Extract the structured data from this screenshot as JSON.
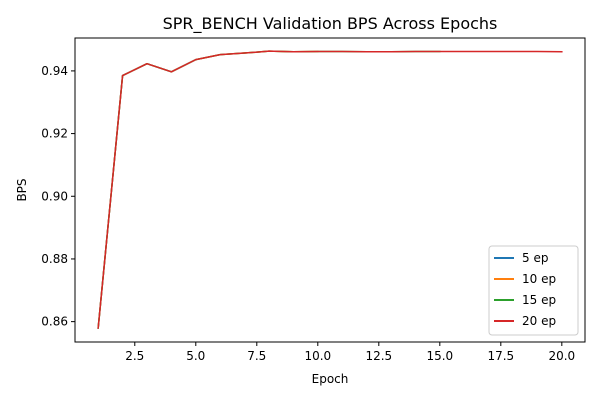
{
  "chart_data": {
    "type": "line",
    "title": "SPR_BENCH Validation BPS Across Epochs",
    "xlabel": "Epoch",
    "ylabel": "BPS",
    "xlim": [
      0.05,
      20.95
    ],
    "ylim": [
      0.8535,
      0.9505
    ],
    "xticks": [
      2.5,
      5.0,
      7.5,
      10.0,
      12.5,
      15.0,
      17.5,
      20.0
    ],
    "xtick_labels": [
      "2.5",
      "5.0",
      "7.5",
      "10.0",
      "12.5",
      "15.0",
      "17.5",
      "20.0"
    ],
    "yticks": [
      0.86,
      0.88,
      0.9,
      0.92,
      0.94
    ],
    "ytick_labels": [
      "0.86",
      "0.88",
      "0.90",
      "0.92",
      "0.94"
    ],
    "grid": false,
    "legend_position": "lower-right",
    "series": [
      {
        "name": "5 ep",
        "color": "#1f77b4",
        "x": [
          1,
          2,
          3,
          4,
          5
        ],
        "y": [
          0.858,
          0.9385,
          0.9423,
          0.9397,
          0.9436
        ]
      },
      {
        "name": "10 ep",
        "color": "#ff7f0e",
        "x": [
          1,
          2,
          3,
          4,
          5,
          6,
          7,
          8,
          9,
          10
        ],
        "y": [
          0.858,
          0.9385,
          0.9423,
          0.9397,
          0.9436,
          0.9452,
          0.9457,
          0.9463,
          0.9461,
          0.9462
        ]
      },
      {
        "name": "15 ep",
        "color": "#2ca02c",
        "x": [
          1,
          2,
          3,
          4,
          5,
          6,
          7,
          8,
          9,
          10,
          11,
          12,
          13,
          14,
          15
        ],
        "y": [
          0.858,
          0.9385,
          0.9423,
          0.9397,
          0.9436,
          0.9452,
          0.9457,
          0.9463,
          0.9461,
          0.9462,
          0.9462,
          0.9461,
          0.9461,
          0.9462,
          0.9462
        ]
      },
      {
        "name": "20 ep",
        "color": "#d62728",
        "x": [
          1,
          2,
          3,
          4,
          5,
          6,
          7,
          8,
          9,
          10,
          11,
          12,
          13,
          14,
          15,
          16,
          17,
          18,
          19,
          20
        ],
        "y": [
          0.858,
          0.9385,
          0.9423,
          0.9397,
          0.9436,
          0.9452,
          0.9457,
          0.9463,
          0.9461,
          0.9462,
          0.9462,
          0.9461,
          0.9461,
          0.9462,
          0.9462,
          0.9462,
          0.9462,
          0.9462,
          0.9462,
          0.9461
        ]
      }
    ]
  }
}
